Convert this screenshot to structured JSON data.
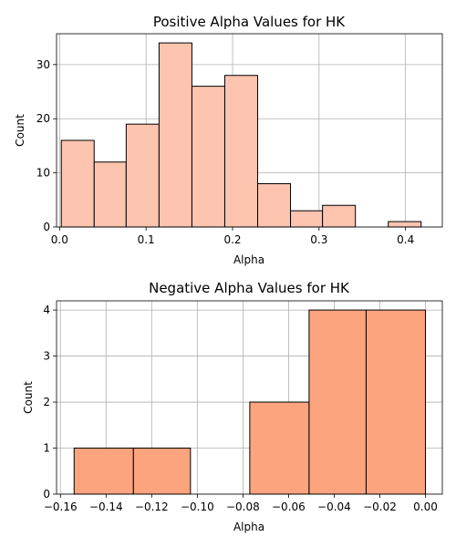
{
  "chart_data": [
    {
      "type": "bar",
      "title": "Positive Alpha Values for HK",
      "xlabel": "Alpha",
      "ylabel": "Count",
      "color": "#fdc4b0",
      "xlim": [
        -0.0035,
        0.4425
      ],
      "ylim": [
        0,
        35.7
      ],
      "xticks": [
        0.0,
        0.1,
        0.2,
        0.3,
        0.4
      ],
      "xtick_labels": [
        "0.0",
        "0.1",
        "0.2",
        "0.3",
        "0.4"
      ],
      "yticks": [
        0,
        10,
        20,
        30
      ],
      "ytick_labels": [
        "0",
        "10",
        "20",
        "30"
      ],
      "bins": [
        {
          "x0": 0.002,
          "x1": 0.04,
          "count": 16
        },
        {
          "x0": 0.04,
          "x1": 0.077,
          "count": 12
        },
        {
          "x0": 0.077,
          "x1": 0.115,
          "count": 19
        },
        {
          "x0": 0.115,
          "x1": 0.153,
          "count": 34
        },
        {
          "x0": 0.153,
          "x1": 0.191,
          "count": 26
        },
        {
          "x0": 0.191,
          "x1": 0.229,
          "count": 28
        },
        {
          "x0": 0.229,
          "x1": 0.267,
          "count": 8
        },
        {
          "x0": 0.267,
          "x1": 0.304,
          "count": 3
        },
        {
          "x0": 0.304,
          "x1": 0.342,
          "count": 4
        },
        {
          "x0": 0.342,
          "x1": 0.38,
          "count": 0
        },
        {
          "x0": 0.38,
          "x1": 0.418,
          "count": 1
        }
      ],
      "grid": true
    },
    {
      "type": "bar",
      "title": "Negative Alpha Values for HK",
      "xlabel": "Alpha",
      "ylabel": "Count",
      "color": "#fca47e",
      "xlim": [
        -0.1617,
        0.0074
      ],
      "ylim": [
        0,
        4.2
      ],
      "xticks": [
        -0.16,
        -0.14,
        -0.12,
        -0.1,
        -0.08,
        -0.06,
        -0.04,
        -0.02,
        0.0
      ],
      "xtick_labels": [
        "−0.16",
        "−0.14",
        "−0.12",
        "−0.10",
        "−0.08",
        "−0.06",
        "−0.04",
        "−0.02",
        "0.00"
      ],
      "yticks": [
        0,
        1,
        2,
        3,
        4
      ],
      "ytick_labels": [
        "0",
        "1",
        "2",
        "3",
        "4"
      ],
      "bins": [
        {
          "x0": -0.154,
          "x1": -0.128,
          "count": 1
        },
        {
          "x0": -0.128,
          "x1": -0.103,
          "count": 1
        },
        {
          "x0": -0.103,
          "x1": -0.077,
          "count": 0
        },
        {
          "x0": -0.077,
          "x1": -0.051,
          "count": 2
        },
        {
          "x0": -0.051,
          "x1": -0.026,
          "count": 4
        },
        {
          "x0": -0.026,
          "x1": 0.0,
          "count": 4
        }
      ],
      "grid": true
    }
  ]
}
